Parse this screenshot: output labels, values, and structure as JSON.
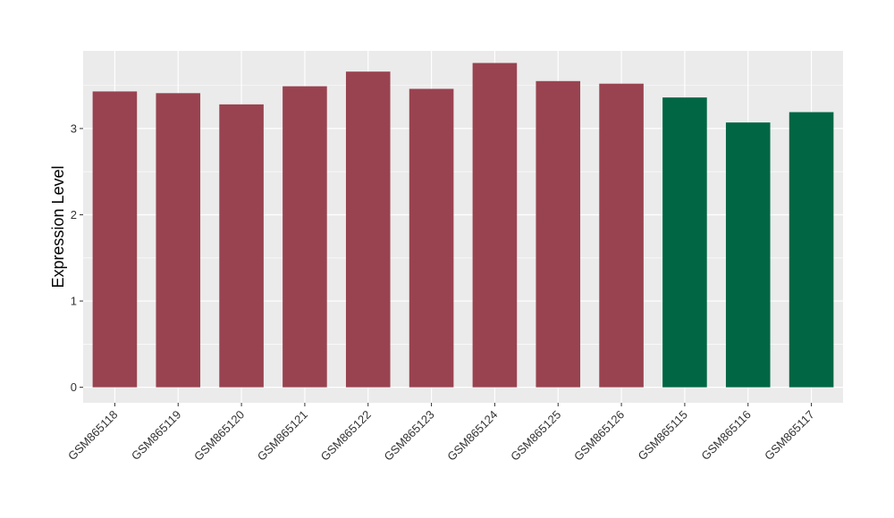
{
  "chart_data": {
    "type": "bar",
    "title": "",
    "xlabel": "",
    "ylabel": "Expression Level",
    "categories": [
      "GSM865118",
      "GSM865119",
      "GSM865120",
      "GSM865121",
      "GSM865122",
      "GSM865123",
      "GSM865124",
      "GSM865125",
      "GSM865126",
      "GSM865115",
      "GSM865116",
      "GSM865117"
    ],
    "values": [
      3.43,
      3.41,
      3.28,
      3.49,
      3.66,
      3.46,
      3.76,
      3.55,
      3.52,
      3.36,
      3.07,
      3.19
    ],
    "groups": [
      "a",
      "a",
      "a",
      "a",
      "a",
      "a",
      "a",
      "a",
      "a",
      "b",
      "b",
      "b"
    ],
    "group_colors": {
      "a": "#994350",
      "b": "#006644"
    },
    "ylim": [
      -0.18,
      3.9
    ],
    "yticks": [
      0,
      1,
      2,
      3
    ],
    "grid": true,
    "panel_background": "#ebebeb",
    "grid_color": "#ffffff"
  }
}
